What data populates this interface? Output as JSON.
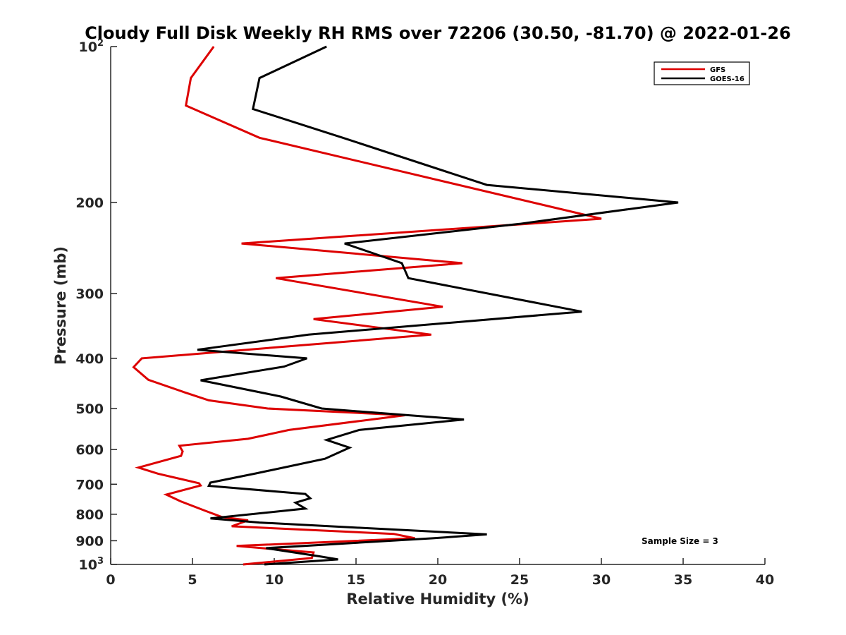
{
  "chart_data": {
    "type": "line",
    "title": "Cloudy Full Disk Weekly RH RMS over 72206 (30.50, -81.70) @ 2022-01-26",
    "xlabel": "Relative Humidity (%)",
    "ylabel": "Pressure (mb)",
    "xlim": [
      0,
      40
    ],
    "ylim": [
      100,
      1000
    ],
    "yscale": "log",
    "y_reversed": true,
    "xticks": [
      0,
      5,
      10,
      15,
      20,
      25,
      30,
      35,
      40
    ],
    "yticks": [
      {
        "value": 100,
        "label": "10",
        "sup": "2"
      },
      {
        "value": 200,
        "label": "200",
        "sup": ""
      },
      {
        "value": 300,
        "label": "300",
        "sup": ""
      },
      {
        "value": 400,
        "label": "400",
        "sup": ""
      },
      {
        "value": 500,
        "label": "500",
        "sup": ""
      },
      {
        "value": 600,
        "label": "600",
        "sup": ""
      },
      {
        "value": 700,
        "label": "700",
        "sup": ""
      },
      {
        "value": 800,
        "label": "800",
        "sup": ""
      },
      {
        "value": 900,
        "label": "900",
        "sup": ""
      },
      {
        "value": 1000,
        "label": "10",
        "sup": "3"
      }
    ],
    "legend_position": "top-right",
    "annotation": "Sample Size = 3",
    "series": [
      {
        "name": "GFS",
        "color": "#dd0000",
        "points": [
          [
            6.3,
            100
          ],
          [
            4.9,
            115
          ],
          [
            4.6,
            130
          ],
          [
            9.1,
            150
          ],
          [
            30.0,
            215
          ],
          [
            8.0,
            240
          ],
          [
            21.5,
            262
          ],
          [
            10.1,
            280
          ],
          [
            20.3,
            318
          ],
          [
            12.4,
            336
          ],
          [
            19.6,
            360
          ],
          [
            1.9,
            400
          ],
          [
            1.4,
            416
          ],
          [
            2.3,
            440
          ],
          [
            4.5,
            465
          ],
          [
            6.0,
            482
          ],
          [
            9.6,
            500
          ],
          [
            18.0,
            515
          ],
          [
            10.9,
            550
          ],
          [
            8.4,
            572
          ],
          [
            4.2,
            590
          ],
          [
            4.4,
            605
          ],
          [
            4.3,
            617
          ],
          [
            1.7,
            650
          ],
          [
            2.9,
            668
          ],
          [
            5.4,
            697
          ],
          [
            5.5,
            704
          ],
          [
            3.4,
            733
          ],
          [
            4.3,
            756
          ],
          [
            5.8,
            788
          ],
          [
            6.8,
            810
          ],
          [
            8.4,
            822
          ],
          [
            7.4,
            844
          ],
          [
            17.3,
            873
          ],
          [
            18.6,
            890
          ],
          [
            7.7,
            921
          ],
          [
            12.4,
            948
          ],
          [
            12.3,
            972
          ],
          [
            8.1,
            1000
          ]
        ]
      },
      {
        "name": "GOES-16",
        "color": "#000000",
        "points": [
          [
            13.2,
            100
          ],
          [
            9.1,
            115
          ],
          [
            8.7,
            132
          ],
          [
            14.2,
            150
          ],
          [
            23.0,
            185
          ],
          [
            34.7,
            200
          ],
          [
            25.0,
            220
          ],
          [
            14.3,
            240
          ],
          [
            17.8,
            262
          ],
          [
            18.2,
            280
          ],
          [
            28.8,
            325
          ],
          [
            12.1,
            360
          ],
          [
            5.3,
            385
          ],
          [
            12.0,
            400
          ],
          [
            10.6,
            415
          ],
          [
            5.5,
            441
          ],
          [
            10.4,
            474
          ],
          [
            12.9,
            500
          ],
          [
            21.6,
            525
          ],
          [
            15.2,
            550
          ],
          [
            13.2,
            575
          ],
          [
            14.6,
            595
          ],
          [
            13.1,
            625
          ],
          [
            8.9,
            667
          ],
          [
            6.1,
            695
          ],
          [
            6.0,
            705
          ],
          [
            11.9,
            731
          ],
          [
            12.2,
            745
          ],
          [
            11.3,
            760
          ],
          [
            11.9,
            780
          ],
          [
            6.1,
            815
          ],
          [
            9.1,
            830
          ],
          [
            23.0,
            875
          ],
          [
            19.7,
            890
          ],
          [
            9.5,
            930
          ],
          [
            12.8,
            965
          ],
          [
            13.9,
            978
          ],
          [
            9.4,
            1000
          ]
        ]
      }
    ]
  }
}
